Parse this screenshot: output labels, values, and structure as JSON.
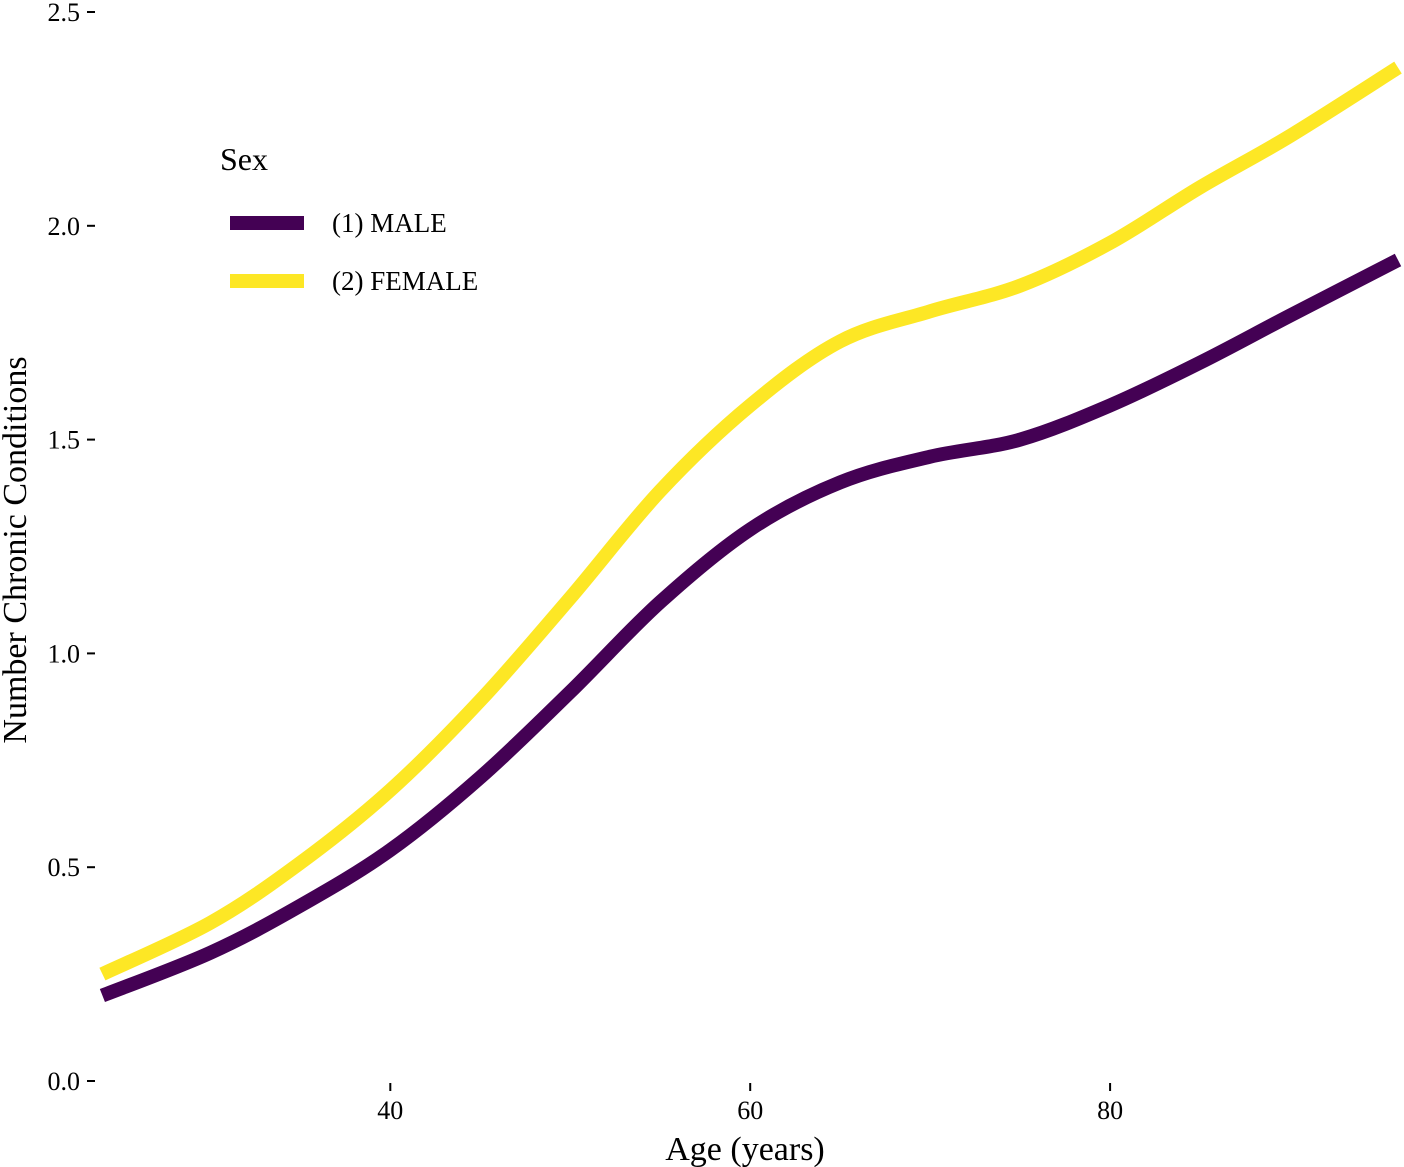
{
  "chart_data": {
    "type": "line",
    "title": "",
    "xlabel": "Age (years)",
    "ylabel": "Number Chronic Conditions",
    "xlim": [
      23.7,
      96
    ],
    "ylim": [
      0,
      2.5
    ],
    "x_ticks": [
      40,
      60,
      80
    ],
    "x_tick_labels": [
      "40",
      "60",
      "80"
    ],
    "y_ticks": [
      0,
      0.5,
      1,
      1.5,
      2,
      2.5
    ],
    "y_tick_labels": [
      "0.0",
      "0.5",
      "1.0",
      "1.5",
      "2.0",
      "2.5"
    ],
    "grid": false,
    "legend": {
      "title": "Sex",
      "position": "top-left"
    },
    "series": [
      {
        "name": "(1) MALE",
        "color": "#440154",
        "x": [
          24,
          30,
          35,
          40,
          45,
          50,
          55,
          60,
          65,
          70,
          75,
          80,
          85,
          90,
          96
        ],
        "y": [
          0.2,
          0.3,
          0.41,
          0.54,
          0.71,
          0.91,
          1.12,
          1.29,
          1.4,
          1.46,
          1.5,
          1.58,
          1.68,
          1.79,
          1.92
        ]
      },
      {
        "name": "(2) FEMALE",
        "color": "#FDE725",
        "x": [
          24,
          30,
          35,
          40,
          45,
          50,
          55,
          60,
          65,
          70,
          75,
          80,
          85,
          90,
          96
        ],
        "y": [
          0.25,
          0.37,
          0.51,
          0.68,
          0.89,
          1.13,
          1.38,
          1.58,
          1.73,
          1.8,
          1.86,
          1.96,
          2.09,
          2.21,
          2.37
        ]
      }
    ]
  }
}
